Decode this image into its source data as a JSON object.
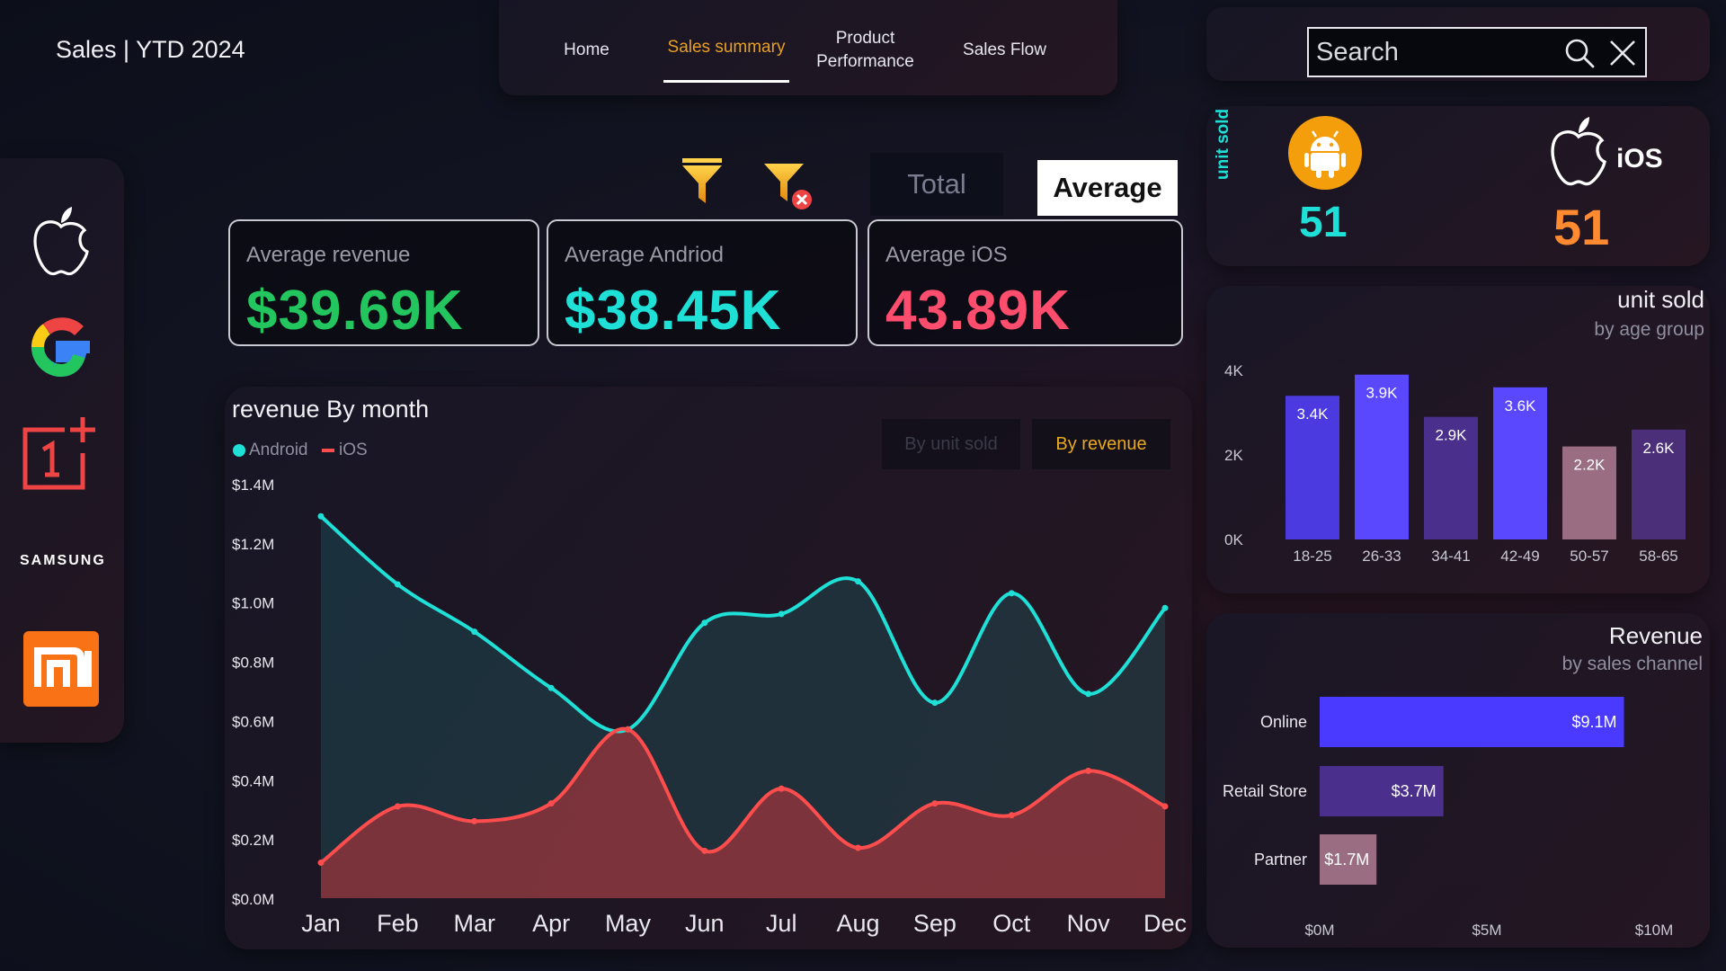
{
  "app": {
    "title": "Sales | YTD 2024"
  },
  "nav": {
    "tabs": [
      {
        "label": "Home",
        "active": false
      },
      {
        "label": "Sales summary",
        "active": true
      },
      {
        "label_line1": "Product",
        "label_line2": "Performance",
        "active": false
      },
      {
        "label": "Sales Flow",
        "active": false
      }
    ]
  },
  "search": {
    "placeholder": "Search",
    "value": ""
  },
  "brands": [
    {
      "name": "apple-logo"
    },
    {
      "name": "google-logo"
    },
    {
      "name": "oneplus-logo"
    },
    {
      "name": "samsung-logo",
      "text": "SAMSUNG"
    },
    {
      "name": "xiaomi-logo",
      "text": "mi"
    }
  ],
  "filters": {
    "apply_icon": "funnel-icon",
    "clear_icon": "funnel-clear-icon"
  },
  "toggle": {
    "total_label": "Total",
    "average_label": "Average",
    "selected": "Average"
  },
  "kpis": [
    {
      "label": "Average revenue",
      "value": "$39.69K",
      "color": "#22c55e"
    },
    {
      "label": "Average Andriod",
      "value": "$38.45K",
      "color": "#1ee0d6"
    },
    {
      "label": "Average iOS",
      "value": "43.89K",
      "color": "#ff4d6d"
    }
  ],
  "revenue_chart": {
    "title": "revenue By month",
    "legend": [
      {
        "label": "Android",
        "color": "#1ee0d6"
      },
      {
        "label": "iOS",
        "color": "#ff4d4d"
      }
    ],
    "buttons": {
      "by_unit": "By unit sold",
      "by_revenue": "By revenue",
      "selected": "By revenue"
    }
  },
  "unit_sold": {
    "label": "unit sold",
    "android": {
      "count": "51",
      "color": "#1ee0d6",
      "icon": "android-icon"
    },
    "ios": {
      "count": "51",
      "label": "iOS",
      "color": "#ff8a30",
      "icon": "apple-icon"
    }
  },
  "age_chart_text": {
    "title": "unit sold",
    "subtitle": "by age group"
  },
  "channel_chart_text": {
    "title": "Revenue",
    "subtitle": "by sales channel"
  },
  "chart_data": [
    {
      "type": "area",
      "title": "revenue By month",
      "categories": [
        "Jan",
        "Feb",
        "Mar",
        "Apr",
        "May",
        "Jun",
        "Jul",
        "Aug",
        "Sep",
        "Oct",
        "Nov",
        "Dec"
      ],
      "series": [
        {
          "name": "Android",
          "color": "#1ee0d6",
          "values": [
            1.29,
            1.06,
            0.9,
            0.71,
            0.57,
            0.93,
            0.96,
            1.07,
            0.66,
            1.03,
            0.69,
            0.98
          ]
        },
        {
          "name": "iOS",
          "color": "#ff4d4d",
          "values": [
            0.12,
            0.31,
            0.26,
            0.32,
            0.57,
            0.16,
            0.37,
            0.17,
            0.32,
            0.28,
            0.43,
            0.31
          ]
        }
      ],
      "ylim": [
        0,
        1.4
      ],
      "yticks": [
        0,
        0.2,
        0.4,
        0.6,
        0.8,
        1.0,
        1.2,
        1.4
      ],
      "ytick_labels": [
        "$0.0M",
        "$0.2M",
        "$0.4M",
        "$0.6M",
        "$0.8M",
        "$1.0M",
        "$1.2M",
        "$1.4M"
      ],
      "grid": false,
      "legend_position": "top-left"
    },
    {
      "type": "bar",
      "title": "unit sold",
      "subtitle": "by age group",
      "categories": [
        "18-25",
        "26-33",
        "34-41",
        "42-49",
        "50-57",
        "58-65"
      ],
      "values": [
        3400,
        3900,
        2900,
        3600,
        2200,
        2600
      ],
      "data_labels": [
        "3.4K",
        "3.9K",
        "2.9K",
        "3.6K",
        "2.2K",
        "2.6K"
      ],
      "colors": [
        "#4a3ae0",
        "#5a48ff",
        "#4b2f8c",
        "#5a48ff",
        "#9a6d82",
        "#4b2f78"
      ],
      "ylim": [
        0,
        4000
      ],
      "yticks": [
        0,
        2000,
        4000
      ],
      "ytick_labels": [
        "0K",
        "2K",
        "4K"
      ]
    },
    {
      "type": "bar",
      "orientation": "horizontal",
      "title": "Revenue",
      "subtitle": "by sales channel",
      "categories": [
        "Online",
        "Retail Store",
        "Partner"
      ],
      "values": [
        9.1,
        3.7,
        1.7
      ],
      "data_labels": [
        "$9.1M",
        "$3.7M",
        "$1.7M"
      ],
      "colors": [
        "#4a3aff",
        "#4b2f8c",
        "#9a6d82"
      ],
      "xlim": [
        0,
        10
      ],
      "xticks": [
        0,
        5,
        10
      ],
      "xtick_labels": [
        "$0M",
        "$5M",
        "$10M"
      ]
    }
  ]
}
